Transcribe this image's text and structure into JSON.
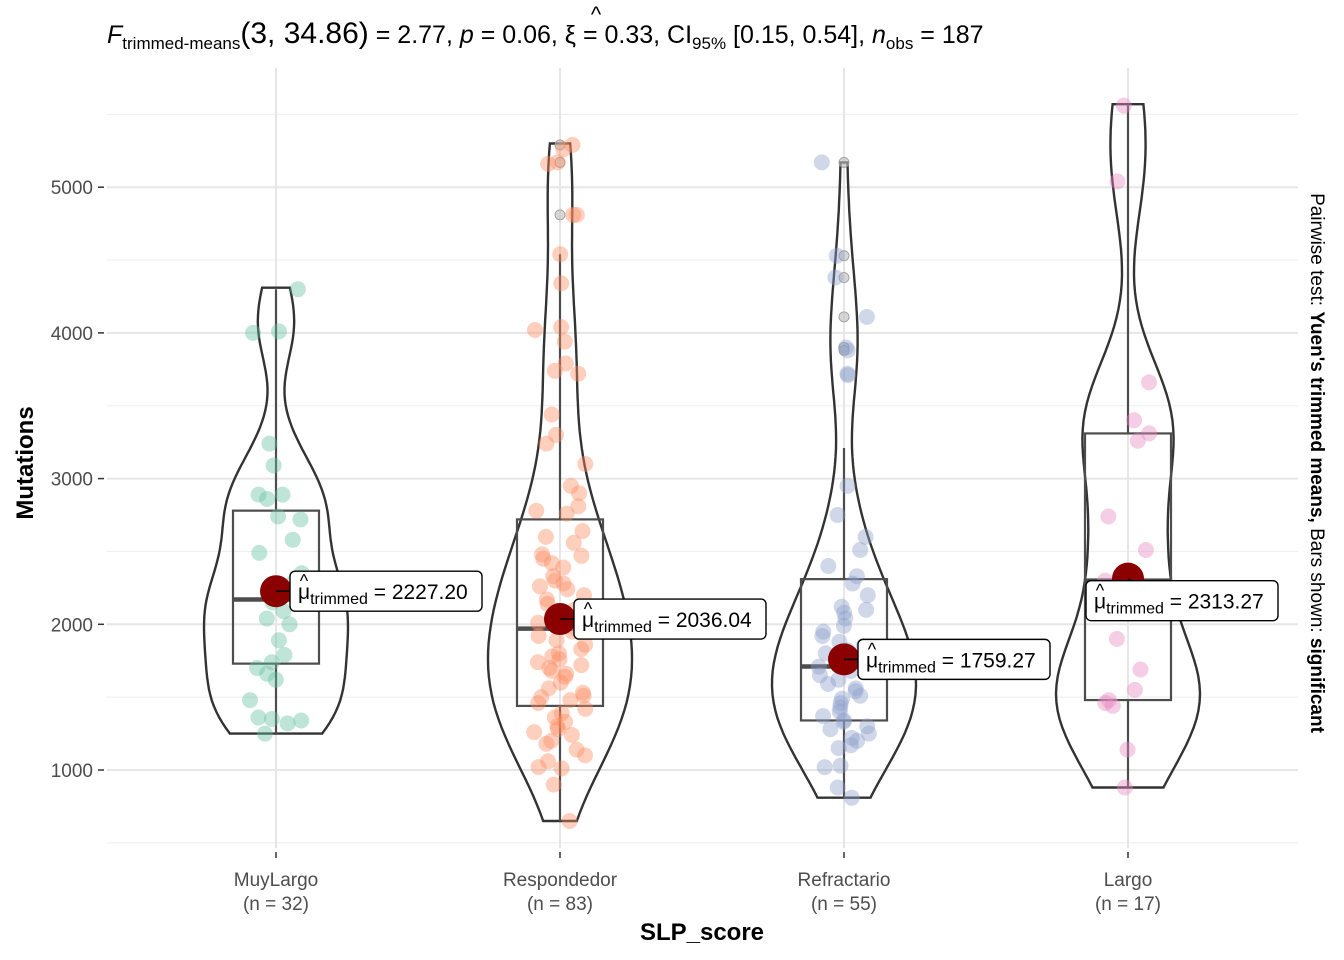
{
  "chart_data": {
    "type": "violin-box-scatter",
    "title": {
      "stat": "F",
      "stat_sub": "trimmed-means",
      "df": "(3, 34.86)",
      "stat_value": " = 2.77, ",
      "p_sym": "p",
      "p_value": " = 0.06, ",
      "effect_sym": "ξ",
      "effect_value": " = 0.33, CI",
      "ci_sub": "95%",
      "ci_value": " [0.15, 0.54], ",
      "n_sym": "n",
      "n_sub": "obs",
      "n_value": " = 187"
    },
    "xlabel": "SLP_score",
    "ylabel": "Mutations",
    "ylim": [
      500,
      5700
    ],
    "yticks": [
      1000,
      2000,
      3000,
      4000,
      5000
    ],
    "ytick_labels": [
      "1000",
      "2000",
      "3000",
      "4000",
      "5000"
    ],
    "grid": true,
    "caption": {
      "prefix": "Pairwise test: ",
      "test": "Yuen's trimmed means,",
      "middle": " Bars shown: ",
      "bars": "significant"
    },
    "mean_label_prefix": "μ",
    "mean_label_sub": "trimmed",
    "categories": [
      {
        "name": "MuyLargo",
        "n_label": "(n = 32)",
        "color": "#66c2a5",
        "trimmed_mean": 2227.2,
        "trimmed_mean_label": " = 2227.20",
        "median": 2170,
        "q1": 1730,
        "q3": 2780,
        "whisker_low": 1250,
        "whisker_high": 4300,
        "violin_min": 1250,
        "violin_max": 4310,
        "points": [
          4300,
          4000,
          4010,
          3240,
          3090,
          2890,
          2890,
          2860,
          2740,
          2720,
          2580,
          2490,
          2350,
          2280,
          2210,
          2180,
          2150,
          2090,
          2040,
          2000,
          1890,
          1790,
          1740,
          1700,
          1660,
          1620,
          1480,
          1360,
          1350,
          1340,
          1320,
          1250
        ]
      },
      {
        "name": "Respondedor",
        "n_label": "(n = 83)",
        "color": "#fc8d62",
        "trimmed_mean": 2036.04,
        "trimmed_mean_label": " = 2036.04",
        "median": 1970,
        "q1": 1440,
        "q3": 2720,
        "whisker_low": 650,
        "whisker_high": 4540,
        "violin_min": 650,
        "violin_max": 5300,
        "outliers": [
          5290,
          5170,
          4810
        ],
        "points": [
          5290,
          5260,
          5170,
          5160,
          4810,
          4810,
          4540,
          4340,
          4040,
          4020,
          3940,
          3790,
          3740,
          3720,
          3440,
          3300,
          3240,
          3100,
          2950,
          2900,
          2810,
          2780,
          2760,
          2640,
          2600,
          2560,
          2480,
          2470,
          2450,
          2420,
          2390,
          2330,
          2300,
          2280,
          2260,
          2240,
          2200,
          2170,
          2140,
          2100,
          2060,
          2040,
          2010,
          1990,
          1970,
          1950,
          1920,
          1890,
          1860,
          1830,
          1800,
          1780,
          1760,
          1740,
          1720,
          1700,
          1680,
          1660,
          1640,
          1600,
          1560,
          1530,
          1510,
          1500,
          1480,
          1460,
          1420,
          1390,
          1360,
          1330,
          1300,
          1280,
          1260,
          1240,
          1200,
          1180,
          1140,
          1100,
          1060,
          1020,
          1010,
          900,
          650
        ]
      },
      {
        "name": "Refractario",
        "n_label": "(n = 55)",
        "color": "#8da0cb",
        "trimmed_mean": 1759.27,
        "trimmed_mean_label": " = 1759.27",
        "median": 1710,
        "q1": 1340,
        "q3": 2310,
        "whisker_low": 810,
        "whisker_high": 3210,
        "violin_min": 810,
        "violin_max": 5170,
        "outliers": [
          5170,
          4530,
          4380,
          4110,
          3900,
          3880
        ],
        "points": [
          5170,
          4530,
          4380,
          4110,
          3900,
          3880,
          3720,
          3710,
          2950,
          2750,
          2600,
          2510,
          2400,
          2330,
          2280,
          2200,
          2120,
          2100,
          2080,
          2040,
          1990,
          1950,
          1920,
          1880,
          1850,
          1820,
          1800,
          1770,
          1740,
          1710,
          1680,
          1650,
          1620,
          1590,
          1560,
          1540,
          1510,
          1490,
          1460,
          1430,
          1400,
          1370,
          1340,
          1330,
          1300,
          1280,
          1250,
          1220,
          1200,
          1170,
          1150,
          1030,
          1020,
          880,
          810
        ]
      },
      {
        "name": "Largo",
        "n_label": "(n = 17)",
        "color": "#e78ac3",
        "trimmed_mean": 2313.27,
        "trimmed_mean_label": " = 2313.27",
        "median": 2300,
        "q1": 1480,
        "q3": 3310,
        "whisker_low": 880,
        "whisker_high": 5560,
        "violin_min": 880,
        "violin_max": 5570,
        "points": [
          5560,
          5040,
          3660,
          3400,
          3310,
          3260,
          2740,
          2510,
          2300,
          1900,
          1690,
          1550,
          1480,
          1460,
          1440,
          1140,
          880
        ]
      }
    ]
  }
}
